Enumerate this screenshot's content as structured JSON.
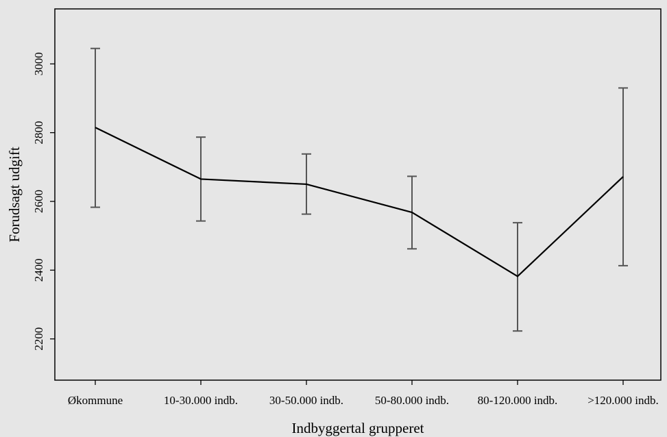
{
  "chart_data": {
    "type": "line",
    "xlabel": "Indbyggertal grupperet",
    "ylabel": "Forudsagt udgift",
    "categories": [
      "Økommune",
      "10-30.000 indb.",
      "30-50.000 indb.",
      "50-80.000 indb.",
      "80-120.000 indb.",
      ">120.000 indb."
    ],
    "series": [
      {
        "values": [
          2815,
          2665,
          2650,
          2568,
          2382,
          2672
        ],
        "ci_low": [
          2583,
          2543,
          2563,
          2462,
          2223,
          2413
        ],
        "ci_high": [
          3045,
          2787,
          2738,
          2673,
          2538,
          2930
        ]
      }
    ],
    "yticks": [
      2200,
      2400,
      2600,
      2800,
      3000
    ],
    "ylim": [
      2080,
      3160
    ],
    "grid": false,
    "legend": "none",
    "colors": {
      "line": "#000000",
      "error_bar": "#555555",
      "background": "#e6e6e6",
      "axis": "#000000"
    }
  }
}
